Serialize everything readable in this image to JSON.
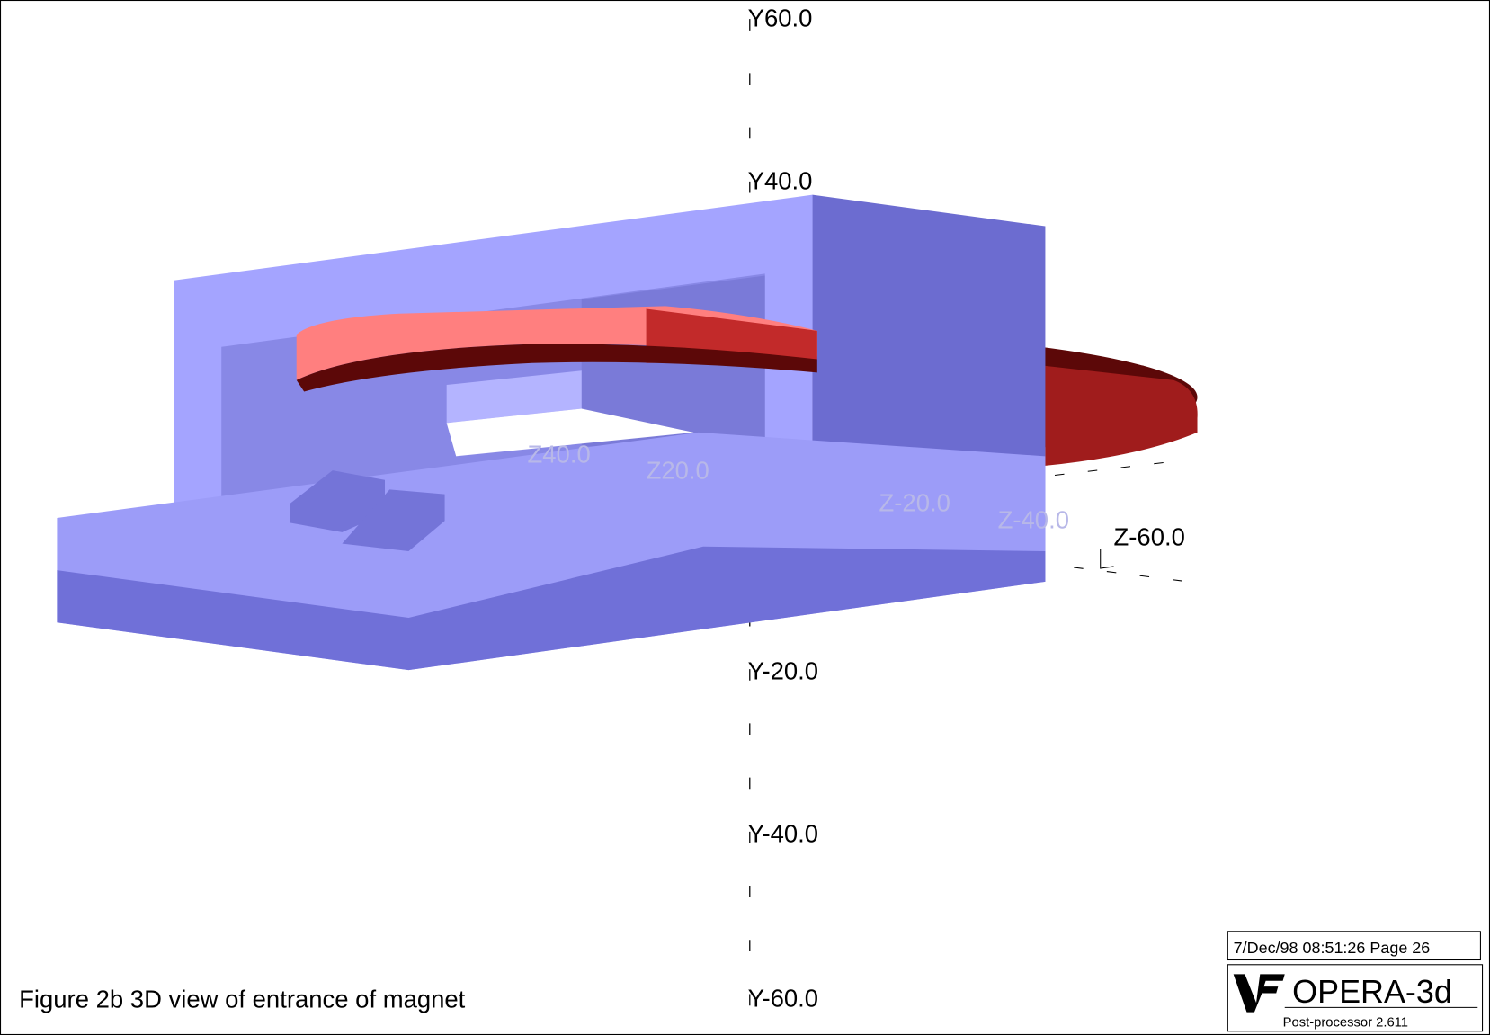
{
  "figure": {
    "caption": "Figure 2b 3D view of entrance of magnet",
    "y_axis_labels": [
      "Y60.0",
      "Y40.0",
      "Y-20.0",
      "Y-40.0",
      "Y-60.0"
    ],
    "z_axis_labels": [
      "Z-60.0"
    ],
    "hidden_labels": [
      "Z40.0",
      "Z20.0",
      "Z-20.0",
      "Z-40.0"
    ],
    "timestamp": "7/Dec/98 08:51:26 Page 26",
    "logo": {
      "name": "OPERA-3d",
      "subtitle": "Post-processor 2.611"
    }
  }
}
